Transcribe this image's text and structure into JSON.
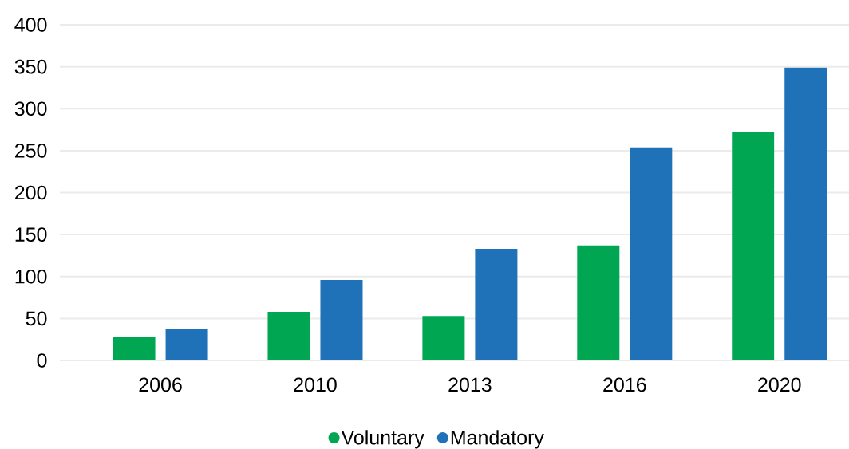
{
  "chart_data": {
    "type": "bar",
    "categories": [
      "2006",
      "2010",
      "2013",
      "2016",
      "2020"
    ],
    "series": [
      {
        "name": "Voluntary",
        "color": "#00a651",
        "values": [
          28,
          58,
          53,
          137,
          272
        ]
      },
      {
        "name": "Mandatory",
        "color": "#1f71b8",
        "values": [
          38,
          96,
          133,
          254,
          349
        ]
      }
    ],
    "ylim": [
      0,
      400
    ],
    "yticks": [
      0,
      50,
      100,
      150,
      200,
      250,
      300,
      350,
      400
    ],
    "grid": "y",
    "legend": "bottom"
  }
}
